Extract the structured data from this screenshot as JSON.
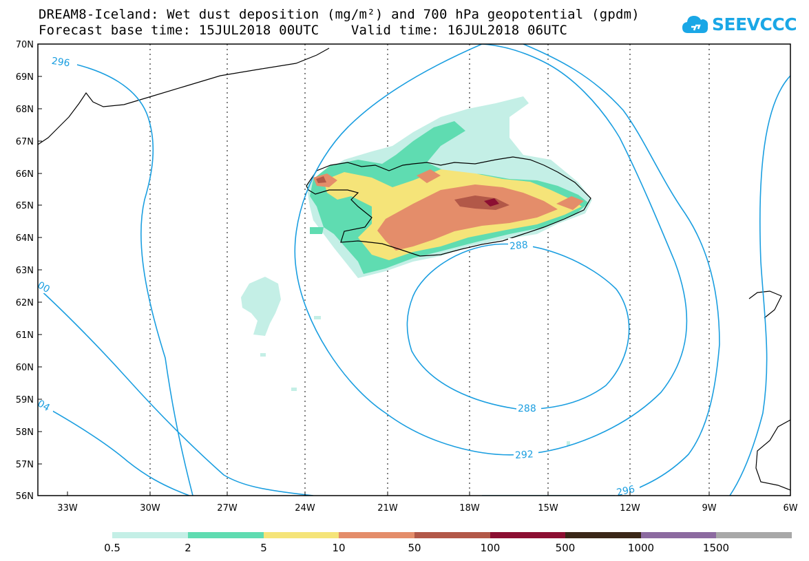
{
  "header": {
    "title_line1": "DREAM8-Iceland: Wet dust deposition (mg/m²) and 700 hPa geopotential (gpdm)",
    "title_line2": "Forecast base time: 15JUL2018 00UTC    Valid time: 16JUL2018 06UTC"
  },
  "logo": {
    "text": "SEEVCCC",
    "icon": "cloud-icon",
    "color": "#1aa7e6"
  },
  "map": {
    "projection": "lat-lon",
    "lat_range": [
      56,
      70
    ],
    "lon_range": [
      -34,
      -6
    ],
    "lat_ticks": [
      "70N",
      "69N",
      "68N",
      "67N",
      "66N",
      "65N",
      "64N",
      "63N",
      "62N",
      "61N",
      "60N",
      "59N",
      "58N",
      "57N",
      "56N"
    ],
    "lon_ticks": [
      "33W",
      "30W",
      "27W",
      "24W",
      "21W",
      "18W",
      "15W",
      "12W",
      "9W",
      "6W"
    ],
    "contour_color": "#1a9ee0",
    "contour_labels": [
      "296",
      "00",
      "04",
      "288",
      "288",
      "292",
      "296"
    ]
  },
  "legend": {
    "labels": [
      "0.5",
      "2",
      "5",
      "10",
      "50",
      "100",
      "500",
      "1000",
      "1500"
    ],
    "colors": [
      "#c4efe6",
      "#5fdcb1",
      "#f5e479",
      "#e48d6a",
      "#b25848",
      "#8c0f32",
      "#3a2718",
      "#8c6aa0",
      "#a8a8a8"
    ]
  }
}
